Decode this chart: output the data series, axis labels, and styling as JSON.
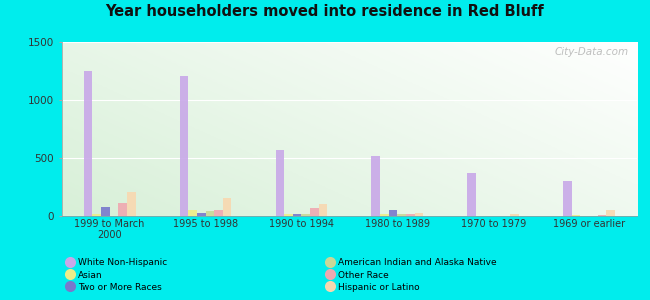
{
  "title": "Year householders moved into residence in Red Bluff",
  "categories": [
    "1999 to March\n2000",
    "1995 to 1998",
    "1990 to 1994",
    "1980 to 1989",
    "1970 to 1979",
    "1969 or earlier"
  ],
  "series": {
    "White Non-Hispanic": [
      1250,
      1210,
      565,
      520,
      370,
      305
    ],
    "Asian": [
      15,
      55,
      20,
      15,
      0,
      5
    ],
    "Two or More Races": [
      80,
      30,
      15,
      50,
      0,
      0
    ],
    "American Indian and Alaska Native": [
      0,
      40,
      20,
      20,
      0,
      0
    ],
    "Other Race": [
      110,
      50,
      70,
      20,
      0,
      10
    ],
    "Hispanic or Latino": [
      210,
      155,
      100,
      30,
      20,
      55
    ]
  },
  "colors": {
    "White Non-Hispanic": "#c8a8e8",
    "Asian": "#eeee88",
    "Two or More Races": "#7878cc",
    "American Indian and Alaska Native": "#c8d898",
    "Other Race": "#f0a8b0",
    "Hispanic or Latino": "#f8d8b0"
  },
  "ylim": [
    0,
    1500
  ],
  "yticks": [
    0,
    500,
    1000,
    1500
  ],
  "outer_bg": "#00eded",
  "watermark": "City-Data.com"
}
